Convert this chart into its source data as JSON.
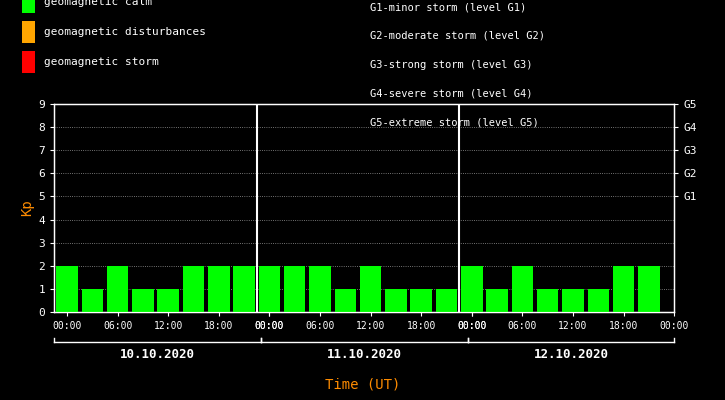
{
  "background_color": "#000000",
  "plot_bg_color": "#000000",
  "text_color": "#ffffff",
  "orange_color": "#ff8c00",
  "bar_color_calm": "#00ff00",
  "bar_color_disturbance": "#ffa500",
  "bar_color_storm": "#ff0000",
  "kp_values": [
    2,
    1,
    2,
    1,
    1,
    2,
    2,
    2,
    2,
    2,
    2,
    1,
    2,
    1,
    1,
    1,
    2,
    1,
    2,
    1,
    1,
    1,
    2,
    2
  ],
  "days": [
    "10.10.2020",
    "11.10.2020",
    "12.10.2020"
  ],
  "xlabel": "Time (UT)",
  "ylabel": "Kp",
  "ylim": [
    0,
    9
  ],
  "yticks": [
    0,
    1,
    2,
    3,
    4,
    5,
    6,
    7,
    8,
    9
  ],
  "right_labels": [
    "G1",
    "G2",
    "G3",
    "G4",
    "G5"
  ],
  "right_label_yvals": [
    5,
    6,
    7,
    8,
    9
  ],
  "legend_items": [
    {
      "label": "geomagnetic calm",
      "color": "#00ff00"
    },
    {
      "label": "geomagnetic disturbances",
      "color": "#ffa500"
    },
    {
      "label": "geomagnetic storm",
      "color": "#ff0000"
    }
  ],
  "storm_annotations": [
    "G1-minor storm (level G1)",
    "G2-moderate storm (level G2)",
    "G3-strong storm (level G3)",
    "G4-severe storm (level G4)",
    "G5-extreme storm (level G5)"
  ],
  "hour_labels": [
    "00:00",
    "06:00",
    "12:00",
    "18:00",
    "00:00"
  ],
  "figsize": [
    7.25,
    4.0
  ],
  "dpi": 100
}
